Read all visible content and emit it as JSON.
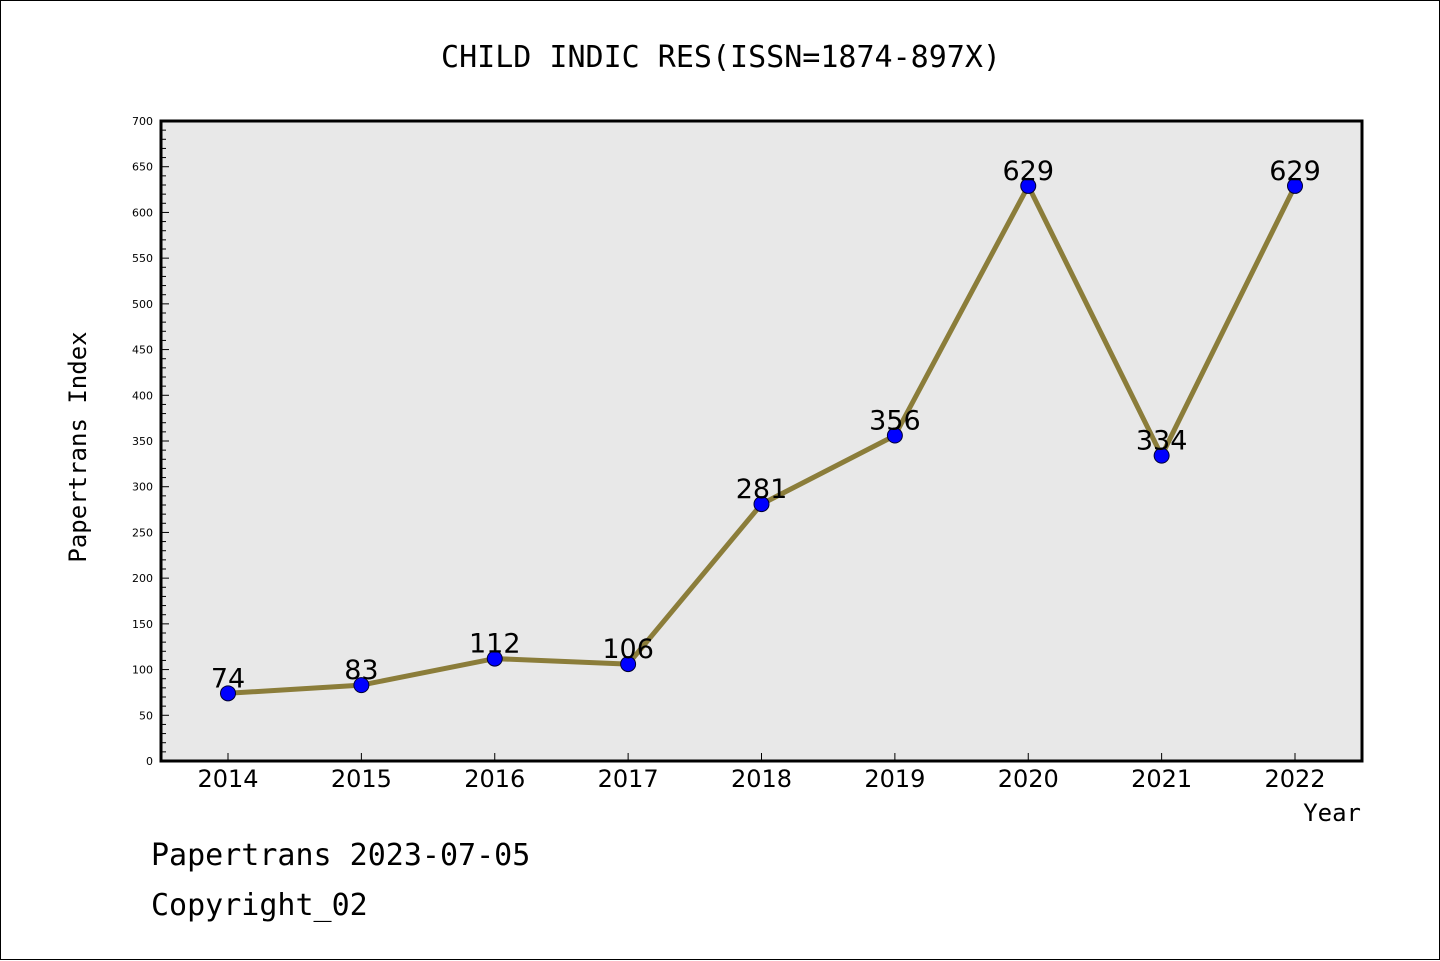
{
  "chart_data": {
    "type": "line",
    "title": "CHILD INDIC RES(ISSN=1874-897X)",
    "xlabel": "Year",
    "ylabel": "Papertrans Index",
    "categories": [
      "2014",
      "2015",
      "2016",
      "2017",
      "2018",
      "2019",
      "2020",
      "2021",
      "2022"
    ],
    "series": [
      {
        "values": [
          74,
          83,
          112,
          106,
          281,
          356,
          629,
          334,
          629
        ]
      }
    ],
    "data_labels": [
      "74",
      "83",
      "112",
      "106",
      "281",
      "356",
      "629",
      "334",
      "629"
    ],
    "ylim": [
      0,
      700
    ],
    "yticks": [
      "0",
      "50",
      "100",
      "150",
      "200",
      "250",
      "300",
      "350",
      "400",
      "450",
      "500",
      "550",
      "600",
      "650",
      "700"
    ],
    "grid": false,
    "legend": "none",
    "colors": {
      "line": "#8b7d3a",
      "marker": "#0000ff",
      "plot_background": "#e8e8e8"
    }
  },
  "footer": {
    "line1": "Papertrans 2023-07-05",
    "line2": "Copyright_02"
  }
}
